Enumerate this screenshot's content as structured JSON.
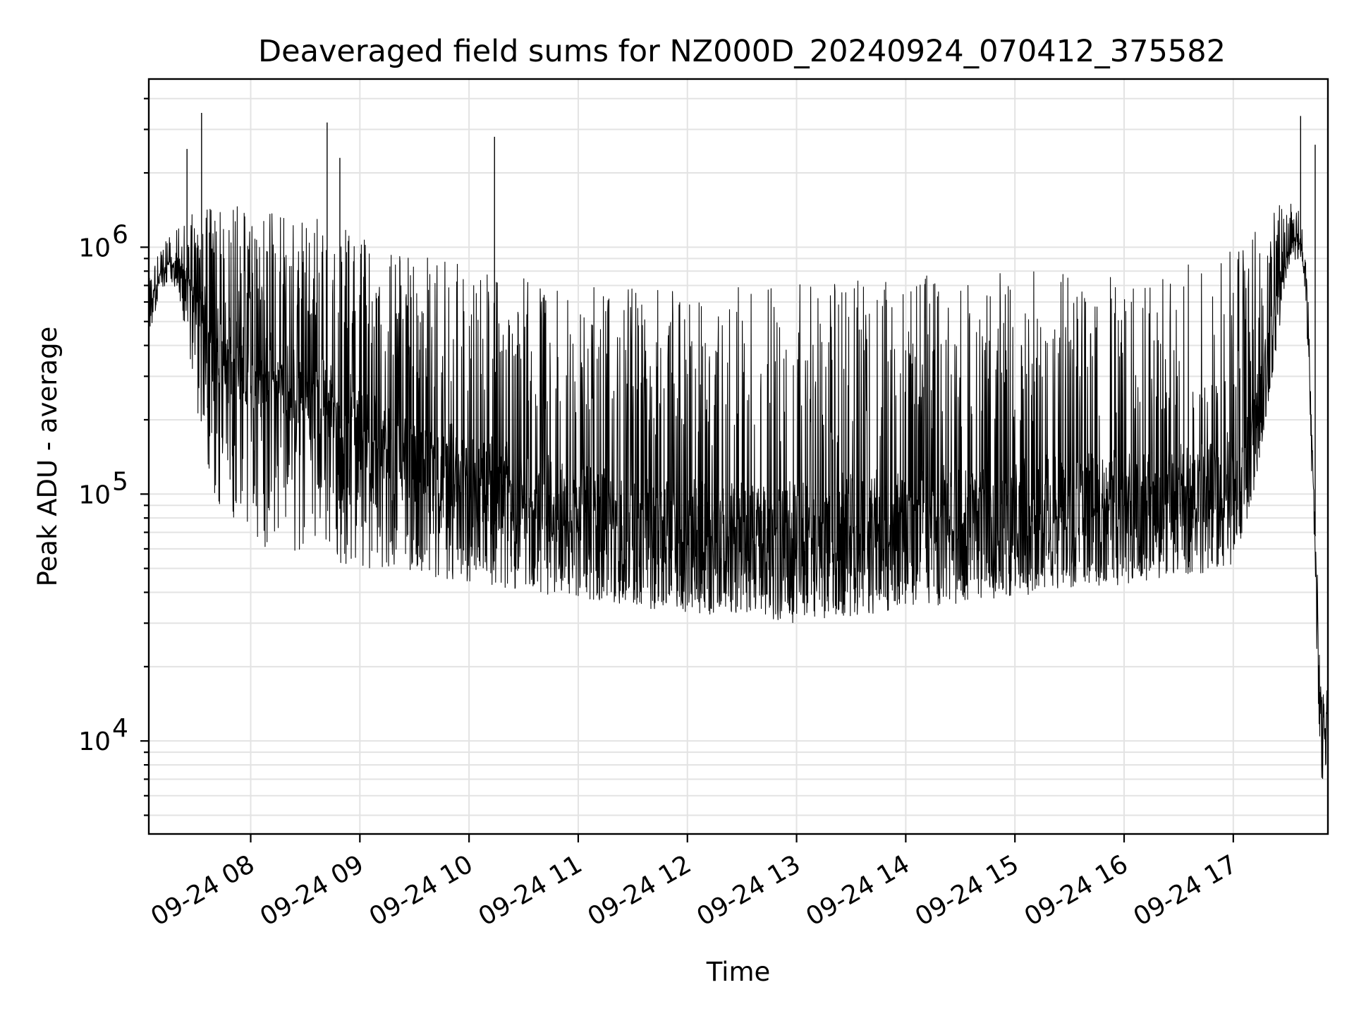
{
  "chart_data": {
    "type": "line",
    "title": "Deaveraged field sums for NZ000D_20240924_070412_375582",
    "xlabel": "Time",
    "ylabel": "Peak ADU - average",
    "y_scale": "log",
    "xlim": [
      "2024-09-24 07:04",
      "2024-09-24 17:52"
    ],
    "ylim": [
      4200,
      4800000
    ],
    "grid": true,
    "line_color": "#000000",
    "x_ticks": [
      {
        "value": "2024-09-24 08:00",
        "label": "09-24 08"
      },
      {
        "value": "2024-09-24 09:00",
        "label": "09-24 09"
      },
      {
        "value": "2024-09-24 10:00",
        "label": "09-24 10"
      },
      {
        "value": "2024-09-24 11:00",
        "label": "09-24 11"
      },
      {
        "value": "2024-09-24 12:00",
        "label": "09-24 12"
      },
      {
        "value": "2024-09-24 13:00",
        "label": "09-24 13"
      },
      {
        "value": "2024-09-24 14:00",
        "label": "09-24 14"
      },
      {
        "value": "2024-09-24 15:00",
        "label": "09-24 15"
      },
      {
        "value": "2024-09-24 16:00",
        "label": "09-24 16"
      },
      {
        "value": "2024-09-24 17:00",
        "label": "09-24 17"
      }
    ],
    "y_ticks": [
      {
        "value": 10000,
        "base": "10",
        "exp": "4"
      },
      {
        "value": 100000,
        "base": "10",
        "exp": "5"
      },
      {
        "value": 1000000,
        "base": "10",
        "exp": "6"
      }
    ],
    "series": [
      {
        "x": [
          "2024-09-24 07:04",
          "2024-09-24 07:12",
          "2024-09-24 07:20",
          "2024-09-24 07:28",
          "2024-09-24 07:36",
          "2024-09-24 07:44",
          "2024-09-24 07:52",
          "2024-09-24 08:00",
          "2024-09-24 08:10",
          "2024-09-24 08:20",
          "2024-09-24 08:30",
          "2024-09-24 08:40",
          "2024-09-24 08:50",
          "2024-09-24 09:00",
          "2024-09-24 09:15",
          "2024-09-24 09:30",
          "2024-09-24 09:45",
          "2024-09-24 10:00",
          "2024-09-24 10:15",
          "2024-09-24 10:30",
          "2024-09-24 10:45",
          "2024-09-24 11:00",
          "2024-09-24 11:15",
          "2024-09-24 11:30",
          "2024-09-24 11:45",
          "2024-09-24 12:00",
          "2024-09-24 12:15",
          "2024-09-24 12:30",
          "2024-09-24 12:45",
          "2024-09-24 13:00",
          "2024-09-24 13:15",
          "2024-09-24 13:30",
          "2024-09-24 13:45",
          "2024-09-24 14:00",
          "2024-09-24 14:15",
          "2024-09-24 14:30",
          "2024-09-24 14:45",
          "2024-09-24 15:00",
          "2024-09-24 15:15",
          "2024-09-24 15:30",
          "2024-09-24 15:45",
          "2024-09-24 16:00",
          "2024-09-24 16:15",
          "2024-09-24 16:30",
          "2024-09-24 16:45",
          "2024-09-24 17:00",
          "2024-09-24 17:10",
          "2024-09-24 17:20",
          "2024-09-24 17:30",
          "2024-09-24 17:36",
          "2024-09-24 17:40",
          "2024-09-24 17:44",
          "2024-09-24 17:48",
          "2024-09-24 17:51"
        ],
        "base": [
          560000,
          800000,
          850000,
          700000,
          500000,
          400000,
          350000,
          300000,
          280000,
          270000,
          250000,
          230000,
          180000,
          150000,
          120000,
          100000,
          90000,
          80000,
          75000,
          70000,
          65000,
          60000,
          55000,
          52000,
          50000,
          48000,
          47000,
          46000,
          46000,
          45000,
          46000,
          48000,
          50000,
          52000,
          55000,
          56000,
          57000,
          58000,
          60000,
          62000,
          64000,
          65000,
          67000,
          70000,
          72000,
          75000,
          120000,
          300000,
          900000,
          1000000,
          800000,
          120000,
          12000,
          12000
        ],
        "low": [
          450000,
          650000,
          700000,
          250000,
          100000,
          80000,
          70000,
          65000,
          60000,
          58000,
          56000,
          54000,
          52000,
          50000,
          48000,
          46000,
          45000,
          44000,
          42000,
          40000,
          39000,
          38000,
          37000,
          35000,
          34000,
          33000,
          32000,
          32000,
          31000,
          30000,
          31000,
          32000,
          33000,
          34000,
          35000,
          36000,
          37000,
          38000,
          40000,
          41000,
          42000,
          43000,
          45000,
          47000,
          48000,
          50000,
          90000,
          250000,
          800000,
          900000,
          600000,
          60000,
          7000,
          6000
        ],
        "high": [
          750000,
          1100000,
          1200000,
          1400000,
          1450000,
          1500000,
          1500000,
          1450000,
          1400000,
          1400000,
          1350000,
          1300000,
          1300000,
          1200000,
          1100000,
          1000000,
          900000,
          850000,
          800000,
          750000,
          720000,
          700000,
          700000,
          700000,
          700000,
          680000,
          680000,
          690000,
          700000,
          720000,
          720000,
          730000,
          740000,
          760000,
          780000,
          780000,
          790000,
          800000,
          800000,
          800000,
          800000,
          780000,
          800000,
          850000,
          900000,
          1000000,
          1200000,
          1400000,
          1600000,
          1500000,
          1100000,
          200000,
          17000,
          17000
        ]
      }
    ],
    "spikes": [
      {
        "x": "2024-09-24 07:25",
        "y": 2500000
      },
      {
        "x": "2024-09-24 07:33",
        "y": 3500000
      },
      {
        "x": "2024-09-24 08:42",
        "y": 3200000
      },
      {
        "x": "2024-09-24 08:49",
        "y": 2300000
      },
      {
        "x": "2024-09-24 10:14",
        "y": 2800000
      },
      {
        "x": "2024-09-24 17:37",
        "y": 3400000
      },
      {
        "x": "2024-09-24 17:45",
        "y": 2600000
      }
    ]
  }
}
